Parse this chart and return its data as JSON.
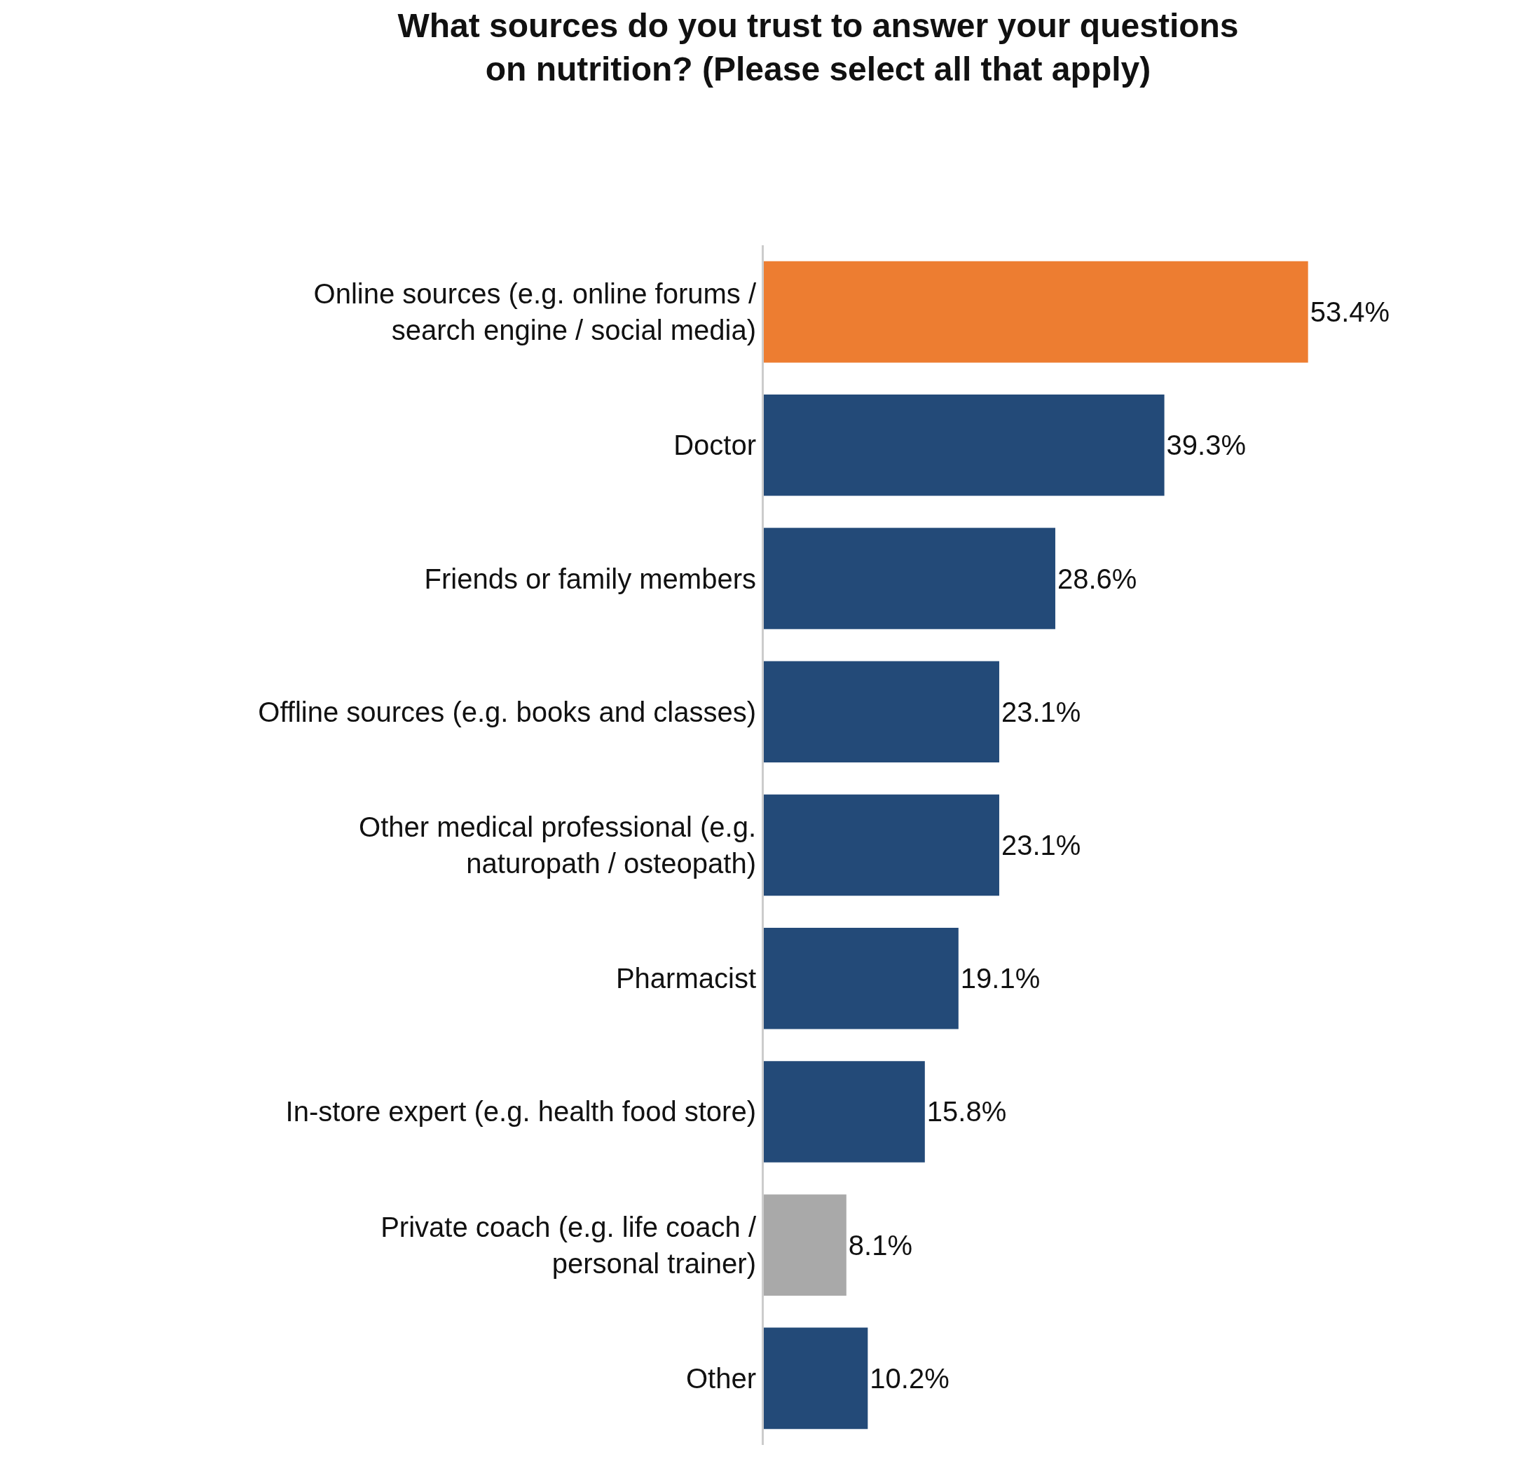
{
  "chart_data": {
    "type": "bar",
    "orientation": "horizontal",
    "title": "What sources do you trust to answer your questions on nutrition? (Please select all that apply)",
    "categories": [
      "Online sources (e.g. online forums / search engine / social media)",
      "Doctor",
      "Friends or family members",
      "Offline sources (e.g. books and classes)",
      "Other medical professional (e.g. naturopath / osteopath)",
      "Pharmacist",
      "In-store expert (e.g. health food store)",
      "Private coach (e.g. life coach / personal trainer)",
      "Other"
    ],
    "values": [
      53.4,
      39.3,
      28.6,
      23.1,
      23.1,
      19.1,
      15.8,
      8.1,
      10.2
    ],
    "value_labels": [
      "53.4%",
      "39.3%",
      "28.6%",
      "23.1%",
      "23.1%",
      "19.1%",
      "15.8%",
      "8.1%",
      "10.2%"
    ],
    "colors": [
      "#ed7d31",
      "#234a78",
      "#234a78",
      "#234a78",
      "#234a78",
      "#234a78",
      "#234a78",
      "#a9a9a9",
      "#234a78"
    ],
    "tick_labels": "y"
  }
}
